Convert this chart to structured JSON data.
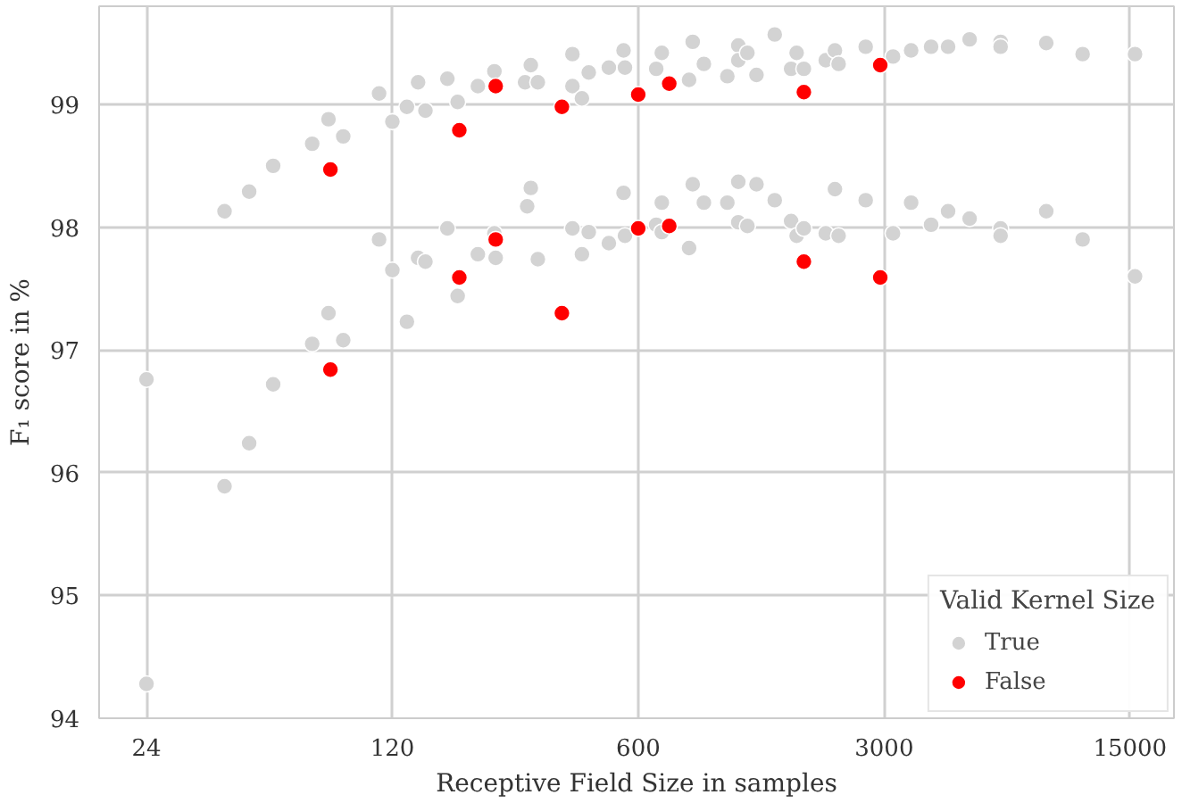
{
  "chart_data": {
    "type": "scatter",
    "xlabel": "Receptive Field Size in samples",
    "ylabel": "F₁ score in %",
    "legend_title": "Valid Kernel Size",
    "legend": "bottom right",
    "grid": true,
    "log": "x",
    "marker": "circle",
    "xlim": [
      17.6,
      20000
    ],
    "ylim": [
      94,
      99.8
    ],
    "xticks": [
      24,
      120,
      600,
      3000,
      15000
    ],
    "yticks": [
      94,
      95,
      96,
      97,
      98,
      99
    ],
    "series": [
      {
        "name": "True",
        "color": "#d3d3d3",
        "x": [
          24,
          24,
          40,
          47,
          55,
          71,
          79,
          87,
          110,
          120,
          132,
          149,
          142,
          172,
          184,
          210,
          234,
          286,
          297,
          311,
          390,
          390,
          415,
          434,
          495,
          545,
          550,
          700,
          675,
          857,
          837,
          922,
          1075,
          1155,
          1155,
          1226,
          1301,
          1466,
          1632,
          1692,
          1774,
          2047,
          2174,
          2227,
          2659,
          3180,
          3580,
          4080,
          4560,
          5250,
          6430,
          6430,
          8670,
          11000,
          15500,
          110,
          120,
          142,
          149,
          172,
          184,
          132,
          79,
          71,
          87,
          210,
          234,
          236,
          290,
          297,
          311,
          390,
          415,
          434,
          495,
          545,
          550,
          55,
          47,
          40,
          700,
          675,
          700,
          857,
          837,
          922,
          1075,
          1155,
          1155,
          1226,
          1301,
          1466,
          1632,
          1692,
          1774,
          2047,
          2174,
          2227,
          2659,
          3180,
          3580,
          4080,
          4560,
          5250,
          6430,
          6430,
          8670,
          11000,
          15500
        ],
        "values": [
          96.76,
          94.28,
          98.13,
          98.29,
          98.5,
          98.68,
          98.88,
          98.74,
          99.09,
          98.86,
          98.98,
          98.95,
          99.18,
          99.21,
          99.02,
          99.15,
          99.27,
          99.18,
          99.32,
          99.18,
          99.15,
          99.41,
          99.05,
          99.26,
          99.3,
          99.44,
          99.3,
          99.42,
          99.29,
          99.51,
          99.2,
          99.33,
          99.23,
          99.48,
          99.36,
          99.42,
          99.24,
          99.57,
          99.29,
          99.42,
          99.29,
          99.36,
          99.44,
          99.33,
          99.47,
          99.39,
          99.44,
          99.47,
          99.47,
          99.53,
          99.51,
          99.47,
          99.5,
          99.41,
          99.41,
          97.9,
          97.65,
          97.75,
          97.72,
          97.99,
          97.44,
          97.23,
          97.3,
          97.05,
          97.08,
          97.78,
          97.95,
          97.75,
          98.17,
          98.32,
          97.74,
          97.99,
          97.78,
          97.96,
          97.87,
          98.28,
          97.93,
          96.72,
          96.24,
          95.89,
          98.2,
          98.02,
          97.96,
          98.35,
          97.83,
          98.2,
          98.2,
          98.37,
          98.04,
          98.01,
          98.35,
          98.22,
          98.05,
          97.93,
          97.99,
          97.95,
          98.31,
          97.93,
          98.22,
          97.95,
          98.2,
          98.02,
          98.13,
          98.07,
          97.99,
          97.93,
          98.13,
          97.9,
          97.6
        ]
      },
      {
        "name": "False",
        "color": "#ff0000",
        "x": [
          80,
          80,
          186,
          186,
          236,
          236,
          364,
          364,
          600,
          600,
          735,
          735,
          1774,
          1774,
          2925,
          2925
        ],
        "values": [
          98.47,
          96.84,
          98.79,
          97.59,
          99.15,
          97.9,
          98.98,
          97.3,
          99.08,
          97.99,
          99.17,
          98.01,
          99.1,
          97.72,
          99.32,
          97.59
        ]
      }
    ]
  }
}
